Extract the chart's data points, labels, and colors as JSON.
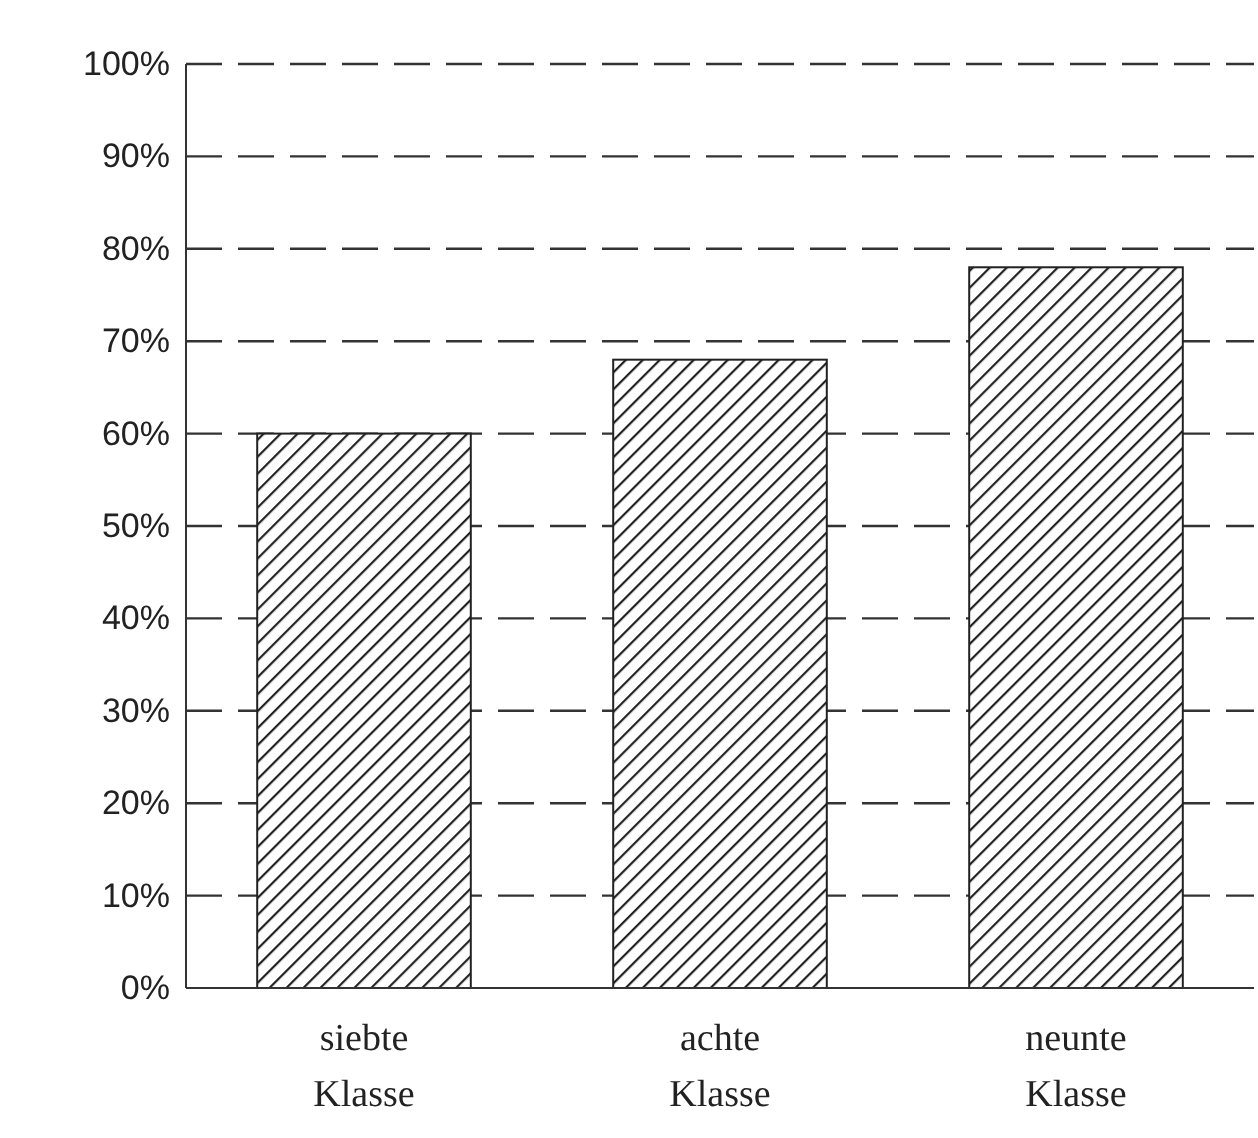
{
  "chart_data": {
    "type": "bar",
    "categories": [
      "siebte Klasse",
      "achte Klasse",
      "neunte Klasse"
    ],
    "values": [
      60,
      68,
      78
    ],
    "color": "#222222",
    "ylim": [
      0,
      100
    ],
    "yticks": [
      {
        "value": 0,
        "label": "0%"
      },
      {
        "value": 10,
        "label": "10%"
      },
      {
        "value": 20,
        "label": "20%"
      },
      {
        "value": 30,
        "label": "30%"
      },
      {
        "value": 40,
        "label": "40%"
      },
      {
        "value": 50,
        "label": "50%"
      },
      {
        "value": 60,
        "label": "60%"
      },
      {
        "value": 70,
        "label": "70%"
      },
      {
        "value": 80,
        "label": "80%"
      },
      {
        "value": 90,
        "label": "90%"
      },
      {
        "value": 100,
        "label": "100%"
      }
    ],
    "grid": "y"
  }
}
